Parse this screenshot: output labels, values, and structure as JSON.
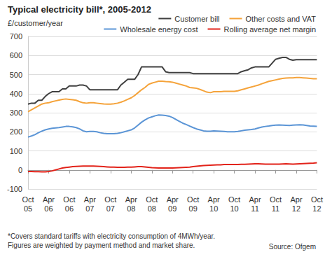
{
  "chart_data": {
    "type": "line",
    "title": "Typical electricity bill*, 2005-2012",
    "y_label": "£/customer/year",
    "footnote": "*Covers standard tariffs with electricity consumption of 4MWh/year.\nFigures are weighted by payment method and market share.",
    "source": "Source: Ofgem",
    "legend": "top-right",
    "grid": true,
    "ylim": [
      -100,
      700
    ],
    "yticks": [
      -100,
      0,
      100,
      200,
      300,
      400,
      500,
      600,
      700
    ],
    "categories": [
      "Oct\n05",
      null,
      null,
      null,
      null,
      null,
      "Apr\n06",
      null,
      null,
      null,
      null,
      null,
      "Oct\n06",
      null,
      null,
      null,
      null,
      null,
      "Apr\n07",
      null,
      null,
      null,
      null,
      null,
      "Oct\n07",
      null,
      null,
      null,
      null,
      null,
      "Apr\n08",
      null,
      null,
      null,
      null,
      null,
      "Oct\n08",
      null,
      null,
      null,
      null,
      null,
      "Apr\n09",
      null,
      null,
      null,
      null,
      null,
      "Oct\n09",
      null,
      null,
      null,
      null,
      null,
      "Apr\n10",
      null,
      null,
      null,
      null,
      null,
      "Oct\n10",
      null,
      null,
      null,
      null,
      null,
      "Apr\n11",
      null,
      null,
      null,
      null,
      null,
      "Oct\n11",
      null,
      null,
      null,
      null,
      null,
      "Apr\n12",
      null,
      null,
      null,
      null,
      null,
      "Oct\n12"
    ],
    "series": [
      {
        "name": "Customer bill",
        "color": "#404040",
        "values": [
          345,
          350,
          350,
          365,
          365,
          385,
          400,
          410,
          410,
          410,
          425,
          425,
          440,
          440,
          440,
          445,
          445,
          440,
          420,
          420,
          420,
          420,
          420,
          420,
          420,
          420,
          420,
          445,
          460,
          475,
          475,
          475,
          500,
          540,
          540,
          540,
          540,
          540,
          540,
          540,
          515,
          510,
          510,
          510,
          510,
          510,
          510,
          510,
          505,
          505,
          505,
          505,
          505,
          505,
          505,
          505,
          505,
          505,
          505,
          505,
          505,
          505,
          515,
          520,
          525,
          535,
          540,
          540,
          540,
          540,
          540,
          560,
          580,
          585,
          590,
          590,
          580,
          575,
          578,
          578,
          578,
          578,
          578,
          578,
          578
        ]
      },
      {
        "name": "Other costs and VAT",
        "color": "#f5a33a",
        "values": [
          305,
          315,
          325,
          335,
          345,
          350,
          352,
          358,
          362,
          366,
          370,
          372,
          370,
          368,
          365,
          358,
          352,
          350,
          352,
          352,
          350,
          348,
          346,
          345,
          345,
          347,
          350,
          355,
          362,
          370,
          378,
          390,
          405,
          420,
          432,
          448,
          455,
          460,
          465,
          465,
          463,
          462,
          460,
          455,
          450,
          445,
          440,
          432,
          430,
          428,
          422,
          415,
          408,
          405,
          410,
          410,
          410,
          412,
          412,
          412,
          412,
          415,
          420,
          425,
          430,
          435,
          440,
          445,
          452,
          458,
          464,
          468,
          472,
          476,
          480,
          482,
          483,
          483,
          484,
          484,
          483,
          482,
          480,
          478,
          478
        ]
      },
      {
        "name": "Wholesale energy cost",
        "color": "#5b95d6",
        "values": [
          172,
          178,
          185,
          195,
          203,
          210,
          215,
          218,
          220,
          222,
          225,
          228,
          228,
          226,
          222,
          215,
          205,
          200,
          202,
          202,
          200,
          195,
          192,
          190,
          190,
          190,
          192,
          195,
          200,
          205,
          210,
          220,
          235,
          250,
          262,
          272,
          278,
          284,
          288,
          287,
          285,
          282,
          275,
          265,
          255,
          245,
          238,
          230,
          222,
          215,
          210,
          205,
          203,
          203,
          205,
          204,
          203,
          202,
          200,
          200,
          200,
          202,
          205,
          208,
          210,
          212,
          215,
          220,
          225,
          228,
          230,
          233,
          235,
          236,
          235,
          234,
          233,
          235,
          236,
          237,
          236,
          233,
          230,
          229,
          228
        ]
      },
      {
        "name": "Rolling average net margin",
        "color": "#e2231a",
        "values": [
          -8,
          -8,
          -9,
          -9,
          -10,
          -10,
          -8,
          -5,
          0,
          5,
          10,
          13,
          15,
          17,
          18,
          19,
          20,
          20,
          20,
          20,
          19,
          18,
          17,
          16,
          15,
          15,
          14,
          14,
          14,
          15,
          15,
          16,
          17,
          17,
          16,
          14,
          12,
          11,
          10,
          10,
          10,
          10,
          10,
          11,
          12,
          13,
          14,
          15,
          17,
          19,
          21,
          23,
          24,
          25,
          26,
          27,
          27,
          28,
          28,
          28,
          28,
          28,
          29,
          29,
          30,
          31,
          32,
          32,
          31,
          30,
          30,
          30,
          30,
          30,
          31,
          32,
          31,
          30,
          31,
          32,
          33,
          34,
          35,
          36,
          38
        ]
      }
    ]
  }
}
